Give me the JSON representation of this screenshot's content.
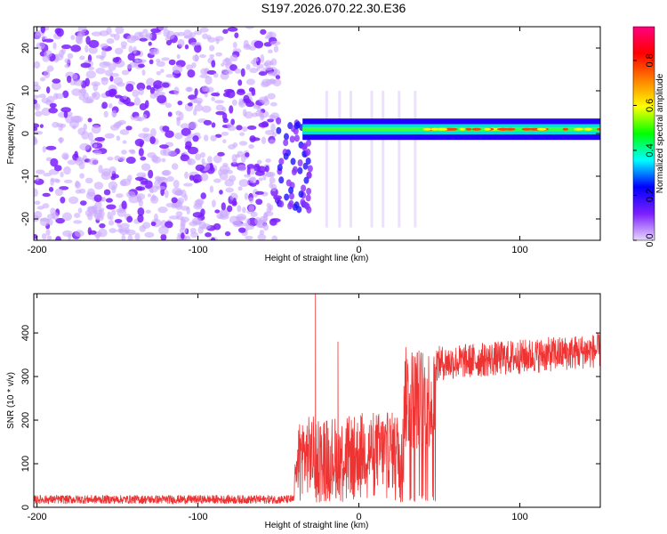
{
  "title": "S197.2026.070.22.30.E36",
  "chart_data": [
    {
      "type": "heatmap",
      "xlabel": "Height of straight line (km)",
      "ylabel": "Frequency (Hz)",
      "xlim": [
        -202,
        150
      ],
      "ylim": [
        -25,
        25
      ],
      "xticks": [
        -200,
        -100,
        0,
        100
      ],
      "xtick_labels": [
        "-200",
        "-100",
        "0",
        "100"
      ],
      "yticks": [
        -20,
        -10,
        0,
        10,
        20
      ],
      "ytick_labels": [
        "-20",
        "-10",
        "0",
        "10",
        "20"
      ],
      "colorbar": {
        "label": "Normalized spectral amplitude",
        "range": [
          0,
          0.95
        ],
        "ticks": [
          0.0,
          0.2,
          0.4,
          0.6,
          0.8
        ],
        "tick_labels": [
          "0.0",
          "0.2",
          "0.4",
          "0.6",
          "0.8"
        ],
        "colors": [
          "#e8d8ff",
          "#7b1fff",
          "#0000ff",
          "#00ffff",
          "#00ff00",
          "#ffff00",
          "#ff8000",
          "#ff0000",
          "#ff0080"
        ]
      },
      "description_regions": {
        "noise_region_x": [
          -202,
          -50
        ],
        "signal_band_x": [
          -50,
          150
        ],
        "band_frequency": 1
      }
    },
    {
      "type": "line",
      "xlabel": "Height of straight line (km)",
      "ylabel": "SNR (10 * v/v)",
      "xlim": [
        -202,
        150
      ],
      "ylim": [
        0,
        490
      ],
      "xticks": [
        -200,
        -100,
        0,
        100
      ],
      "xtick_labels": [
        "-200",
        "-100",
        "0",
        "100"
      ],
      "yticks": [
        0,
        100,
        200,
        300,
        400
      ],
      "ytick_labels": [
        "0",
        "100",
        "200",
        "300",
        "400"
      ],
      "color": "#ee3333",
      "segments": [
        {
          "x": [
            -202,
            -40
          ],
          "mean": 18,
          "noise": 10
        },
        {
          "x": [
            -40,
            -38
          ],
          "mean": 80,
          "noise": 30
        },
        {
          "x": [
            -38,
            0
          ],
          "mean": 120,
          "noise": 90
        },
        {
          "x": [
            0,
            28
          ],
          "mean": 130,
          "noise": 90
        },
        {
          "x": [
            28,
            48
          ],
          "mean": 250,
          "noise": 120
        },
        {
          "x": [
            48,
            150
          ],
          "mean": 330,
          "noise": 40
        }
      ],
      "peaks": [
        {
          "x": -27,
          "y": 490
        },
        {
          "x": -13,
          "y": 380
        },
        {
          "x": 30,
          "y": 340
        }
      ],
      "end_trend": 360
    }
  ]
}
